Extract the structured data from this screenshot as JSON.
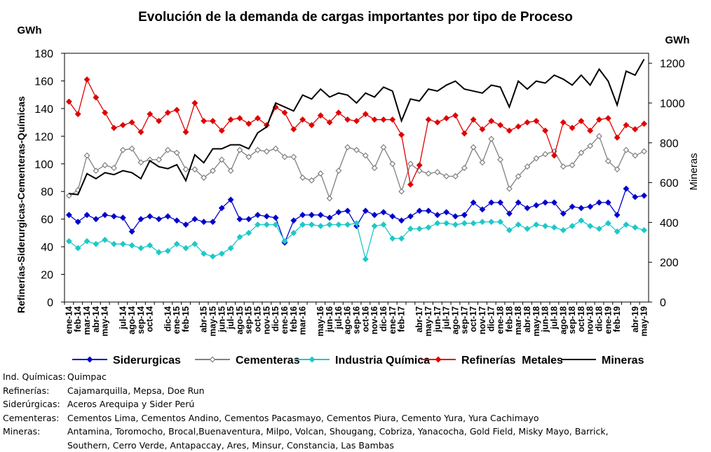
{
  "chart_data": {
    "type": "line",
    "title": "Evolución de la demanda de cargas importantes por tipo de Proceso",
    "y_unit": "GWh",
    "y2_unit": "GWh",
    "y_label": "Refinerías-Siderurgicas-Cementeras-Químicas",
    "y2_label": "Mineras",
    "categories": [
      "ene-14",
      "feb-14",
      "mar-14",
      "abr-14",
      "may-14",
      null,
      "jul-14",
      "ago-14",
      "sep-14",
      "oct-14",
      null,
      "dic-14",
      "ene-15",
      "feb-15",
      null,
      "abr-15",
      "may-15",
      "jun-15",
      "jul-15",
      "ago-15",
      "sep-15",
      "oct-15",
      "nov-15",
      "dic-15",
      "ene-16",
      "feb-16",
      "mar-16",
      null,
      "may-16",
      "jun-16",
      "jul-16",
      "ago-16",
      "sep-16",
      "oct-16",
      "nov-16",
      "dic-16",
      "ene-17",
      "feb-17",
      null,
      "abr-17",
      "may-17",
      "jun-17",
      "jul-17",
      "ago-17",
      "sep-17",
      "oct-17",
      "nov-17",
      "dic-17",
      "ene-18",
      "feb-18",
      "mar-18",
      "abr-18",
      "may-18",
      "jun-18",
      "jul-18",
      "ago-18",
      "sep-18",
      "oct-18",
      "nov-18",
      "dic-18",
      "ene-19",
      "feb-19",
      null,
      "abr-19",
      "may-19"
    ],
    "series": [
      {
        "name": "Siderurgicas",
        "color": "#0000cc",
        "marker": "diamond",
        "values": [
          63,
          58,
          63,
          60,
          63,
          62,
          61,
          51,
          60,
          62,
          60,
          62,
          59,
          56,
          60,
          58,
          58,
          68,
          74,
          60,
          60,
          63,
          62,
          61,
          43,
          59,
          63,
          63,
          63,
          61,
          65,
          66,
          55,
          66,
          63,
          65,
          62,
          59,
          62,
          66,
          66,
          63,
          65,
          62,
          63,
          72,
          67,
          72,
          72,
          64,
          72,
          68,
          70,
          72,
          72,
          64,
          69,
          68,
          69,
          72,
          72,
          63,
          82,
          76,
          77
        ]
      },
      {
        "name": "Cementeras",
        "color": "#808080",
        "marker": "open-diamond",
        "values": [
          77,
          81,
          106,
          95,
          99,
          97,
          110,
          111,
          101,
          103,
          103,
          110,
          108,
          96,
          96,
          90,
          95,
          103,
          95,
          110,
          105,
          110,
          109,
          111,
          105,
          105,
          90,
          88,
          93,
          75,
          95,
          112,
          110,
          106,
          97,
          112,
          100,
          80,
          100,
          95,
          93,
          94,
          91,
          91,
          97,
          112,
          101,
          118,
          103,
          82,
          91,
          98,
          104,
          107,
          109,
          98,
          99,
          108,
          113,
          120,
          102,
          96,
          110,
          106,
          109
        ]
      },
      {
        "name": "Industria Química",
        "color": "#1ec8c8",
        "marker": "diamond",
        "values": [
          44,
          39,
          44,
          42,
          45,
          42,
          42,
          41,
          39,
          41,
          36,
          37,
          42,
          39,
          42,
          35,
          33,
          35,
          39,
          47,
          50,
          56,
          56,
          56,
          44,
          50,
          56,
          56,
          55,
          56,
          56,
          56,
          57,
          31,
          55,
          56,
          46,
          46,
          53,
          53,
          54,
          57,
          57,
          56,
          57,
          57,
          58,
          58,
          58,
          52,
          56,
          53,
          56,
          55,
          54,
          52,
          55,
          59,
          55,
          53,
          57,
          51,
          56,
          54,
          52
        ]
      },
      {
        "name": "Refinerías  Metales",
        "color": "#e00000",
        "marker": "diamond",
        "values": [
          145,
          136,
          161,
          148,
          137,
          126,
          128,
          130,
          123,
          136,
          131,
          137,
          139,
          123,
          144,
          131,
          131,
          124,
          132,
          133,
          129,
          133,
          128,
          141,
          137,
          125,
          132,
          128,
          135,
          130,
          137,
          132,
          131,
          136,
          132,
          132,
          132,
          121,
          85,
          99,
          132,
          130,
          133,
          135,
          122,
          132,
          125,
          131,
          128,
          124,
          127,
          130,
          131,
          124,
          106,
          130,
          126,
          131,
          124,
          132,
          133,
          119,
          128,
          125,
          129
        ]
      },
      {
        "name": "Mineras",
        "color": "#000000",
        "marker": "none",
        "axis": "y2",
        "values": [
          545,
          540,
          645,
          620,
          650,
          640,
          660,
          650,
          620,
          710,
          680,
          670,
          690,
          610,
          740,
          700,
          770,
          770,
          790,
          790,
          770,
          850,
          880,
          1000,
          980,
          960,
          1040,
          1020,
          1070,
          1030,
          1050,
          1040,
          1000,
          1050,
          1030,
          1080,
          1060,
          910,
          1020,
          1010,
          1070,
          1060,
          1090,
          1110,
          1070,
          1060,
          1050,
          1090,
          1080,
          980,
          1110,
          1070,
          1110,
          1100,
          1140,
          1120,
          1090,
          1140,
          1090,
          1170,
          1110,
          990,
          1160,
          1140,
          1220
        ]
      }
    ],
    "ylim": [
      0,
      180
    ],
    "yticks": [
      0,
      20,
      40,
      60,
      80,
      100,
      120,
      140,
      160,
      180
    ],
    "y2lim": [
      0,
      1250
    ],
    "y2ticks": [
      0,
      200,
      400,
      600,
      800,
      1000,
      1200
    ],
    "grid": false,
    "legend": "bottom",
    "notes": [
      {
        "label": "Ind. Químicas:",
        "lines": [
          "Quimpac"
        ]
      },
      {
        "label": "Refinerías:",
        "lines": [
          "Cajamarquilla, Mepsa, Doe Run"
        ]
      },
      {
        "label": "Siderúrgicas:",
        "lines": [
          "Aceros Arequipa y Sider Perú"
        ]
      },
      {
        "label": "Cementeras:",
        "lines": [
          "Cementos Lima, Cementos Andino, Cementos Pacasmayo, Cementos Piura, Cemento Yura, Yura Cachimayo"
        ]
      },
      {
        "label": "Mineras:",
        "lines": [
          "Antamina, Toromocho, Brocal,Buenaventura, Milpo, Volcan, Shougang, Cobriza, Yanacocha, Gold Field, Misky Mayo, Barrick,",
          "Southern, Cerro Verde, Antapaccay, Ares, Minsur, Constancia, Las Bambas"
        ]
      }
    ]
  }
}
